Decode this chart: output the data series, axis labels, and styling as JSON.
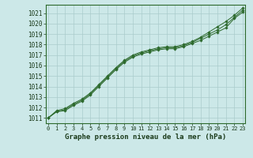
{
  "background_color": "#cce8e8",
  "grid_color": "#aacccc",
  "line_color": "#2d6a2d",
  "xlabel": "Graphe pression niveau de la mer (hPa)",
  "ylim": [
    1010.5,
    1021.8
  ],
  "xlim": [
    -0.3,
    23.3
  ],
  "yticks": [
    1011,
    1012,
    1013,
    1014,
    1015,
    1016,
    1017,
    1018,
    1019,
    1020,
    1021
  ],
  "xticks": [
    0,
    1,
    2,
    3,
    4,
    5,
    6,
    7,
    8,
    9,
    10,
    11,
    12,
    13,
    14,
    15,
    16,
    17,
    18,
    19,
    20,
    21,
    22,
    23
  ],
  "series": [
    [
      1011.0,
      1011.6,
      1011.7,
      1012.2,
      1012.6,
      1013.2,
      1014.0,
      1014.8,
      1015.6,
      1016.3,
      1016.8,
      1017.1,
      1017.3,
      1017.5,
      1017.6,
      1017.6,
      1017.8,
      1018.1,
      1018.4,
      1018.8,
      1019.2,
      1019.6,
      1020.5,
      1021.1
    ],
    [
      1011.0,
      1011.6,
      1011.8,
      1012.3,
      1012.7,
      1013.3,
      1014.1,
      1014.9,
      1015.7,
      1016.4,
      1016.9,
      1017.2,
      1017.4,
      1017.6,
      1017.7,
      1017.7,
      1017.9,
      1018.2,
      1018.6,
      1019.0,
      1019.4,
      1019.9,
      1020.6,
      1021.3
    ],
    [
      1011.0,
      1011.7,
      1011.9,
      1012.4,
      1012.8,
      1013.4,
      1014.2,
      1015.0,
      1015.8,
      1016.5,
      1017.0,
      1017.3,
      1017.5,
      1017.7,
      1017.8,
      1017.8,
      1018.0,
      1018.3,
      1018.7,
      1019.2,
      1019.7,
      1020.2,
      1020.8,
      1021.5
    ]
  ]
}
